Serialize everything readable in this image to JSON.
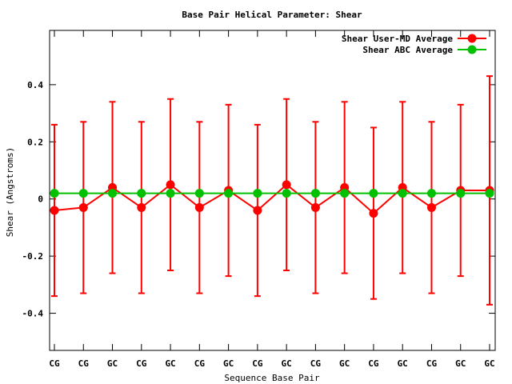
{
  "chart_data": {
    "type": "line",
    "title": "Base Pair Helical Parameter: Shear",
    "xlabel": "Sequence Base Pair",
    "ylabel": "Shear (Angstroms)",
    "categories": [
      "CG",
      "CG",
      "GC",
      "CG",
      "GC",
      "CG",
      "GC",
      "CG",
      "GC",
      "CG",
      "GC",
      "CG",
      "GC",
      "CG",
      "GC",
      "GC"
    ],
    "ylim": [
      -0.53,
      0.59
    ],
    "yticks": [
      -0.4,
      -0.2,
      0,
      0.2,
      0.4
    ],
    "ytick_labels": [
      "-0.4",
      "-0.2",
      "0",
      "0.2",
      "0.4"
    ],
    "grid": false,
    "legend_position": "top-right",
    "series": [
      {
        "name": "Shear User-MD Average",
        "color": "#ff0000",
        "values": [
          -0.04,
          -0.03,
          0.04,
          -0.03,
          0.05,
          -0.03,
          0.03,
          -0.04,
          0.05,
          -0.03,
          0.04,
          -0.05,
          0.04,
          -0.03,
          0.03,
          0.03
        ],
        "err_low": [
          -0.34,
          -0.33,
          -0.26,
          -0.33,
          -0.25,
          -0.33,
          -0.27,
          -0.34,
          -0.25,
          -0.33,
          -0.26,
          -0.35,
          -0.26,
          -0.33,
          -0.27,
          -0.37
        ],
        "err_high": [
          0.26,
          0.27,
          0.34,
          0.27,
          0.35,
          0.27,
          0.33,
          0.26,
          0.35,
          0.27,
          0.34,
          0.25,
          0.34,
          0.27,
          0.33,
          0.43
        ]
      },
      {
        "name": "Shear ABC Average",
        "color": "#00c000",
        "values": [
          0.02,
          0.02,
          0.02,
          0.02,
          0.02,
          0.02,
          0.02,
          0.02,
          0.02,
          0.02,
          0.02,
          0.02,
          0.02,
          0.02,
          0.02,
          0.02
        ]
      }
    ]
  }
}
